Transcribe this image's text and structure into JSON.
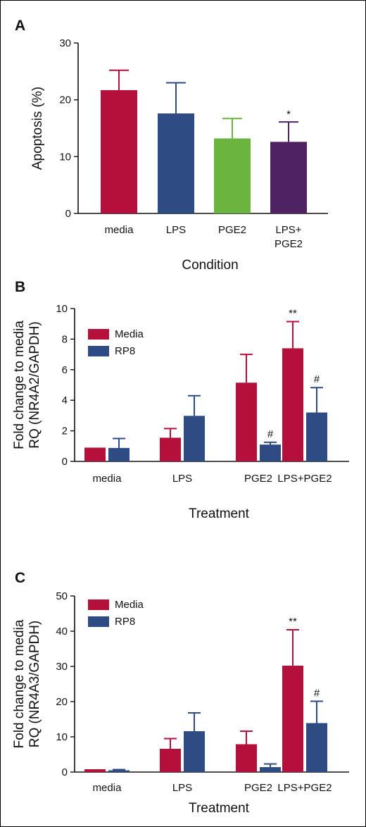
{
  "chart_data": [
    {
      "type": "bar",
      "panel": "A",
      "categories": [
        "media",
        "LPS",
        "PGE2",
        "LPS+\nPGE2"
      ],
      "values": [
        21.7,
        17.6,
        13.2,
        12.6
      ],
      "errors": [
        3.5,
        5.4,
        3.5,
        3.5
      ],
      "colors": [
        "#b5103c",
        "#2e4b84",
        "#6bb43f",
        "#4e2263"
      ],
      "annotations": [
        "",
        "",
        "",
        "*"
      ],
      "xlabel": "Condition",
      "ylabel": "Apoptosis (%)",
      "ylim": [
        0,
        30
      ],
      "yticks": [
        0,
        10,
        20,
        30
      ],
      "grid": false
    },
    {
      "type": "bar",
      "panel": "B",
      "categories": [
        "media",
        "LPS",
        "PGE2",
        "LPS+PGE2"
      ],
      "series": [
        {
          "name": "Media",
          "color": "#b5103c",
          "values": [
            0.9,
            1.55,
            5.15,
            7.4
          ],
          "errors": [
            0,
            0.6,
            1.85,
            1.75
          ],
          "annotations": [
            "",
            "",
            "",
            "**"
          ]
        },
        {
          "name": "RP8",
          "color": "#2e4b84",
          "values": [
            0.88,
            2.98,
            1.1,
            3.2
          ],
          "errors": [
            0.62,
            1.32,
            0.15,
            1.63
          ],
          "annotations": [
            "",
            "",
            "#",
            "#"
          ]
        }
      ],
      "xlabel": "Treatment",
      "ylabel": "Fold change to media\nRQ (NR4A2/GAPDH)",
      "ylim": [
        0,
        10
      ],
      "yticks": [
        0,
        2,
        4,
        6,
        8,
        10
      ],
      "legend": "top-left",
      "grid": false
    },
    {
      "type": "bar",
      "panel": "C",
      "categories": [
        "media",
        "LPS",
        "PGE2",
        "LPS+PGE2"
      ],
      "series": [
        {
          "name": "Media",
          "color": "#b5103c",
          "values": [
            0.8,
            6.6,
            7.9,
            30.2
          ],
          "errors": [
            0,
            2.9,
            3.7,
            10.2
          ],
          "annotations": [
            "",
            "",
            "",
            "**"
          ]
        },
        {
          "name": "RP8",
          "color": "#2e4b84",
          "values": [
            0.5,
            11.6,
            1.4,
            13.9
          ],
          "errors": [
            0.2,
            5.2,
            0.9,
            6.2
          ],
          "annotations": [
            "",
            "",
            "",
            "#"
          ]
        }
      ],
      "xlabel": "Treatment",
      "ylabel": "Fold change to media\nRQ (NR4A3/GAPDH)",
      "ylim": [
        0,
        50
      ],
      "yticks": [
        0,
        10,
        20,
        30,
        40,
        50
      ],
      "legend": "top-left",
      "grid": false
    }
  ]
}
